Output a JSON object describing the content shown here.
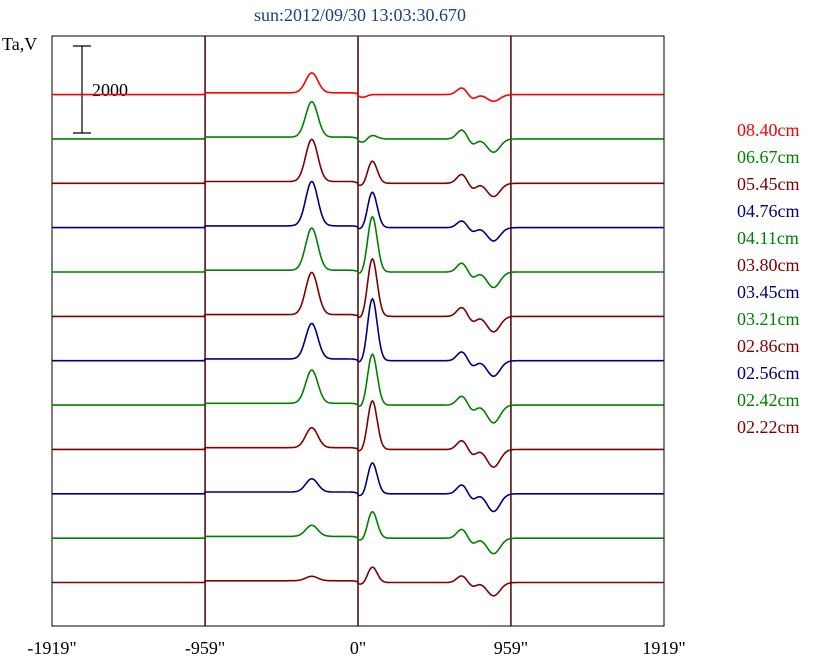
{
  "chart_data": {
    "type": "line",
    "title": "sun:2012/09/30 13:03:30.670",
    "ylabel": "Ta,V",
    "xlabel": "",
    "scale_bar_label": "2000",
    "scale_bar_value": 2000,
    "x_ticks": [
      "-1919\"",
      "-959\"",
      "0\"",
      "959\"",
      "1919\""
    ],
    "x_tick_values": [
      -1919,
      -959,
      0,
      959,
      1919
    ],
    "xlim": [
      -1919,
      1919
    ],
    "vlines": [
      -959,
      0,
      959
    ],
    "ylim": [
      0,
      13.3
    ],
    "series": [
      {
        "name": "08.40cm",
        "color": "#ff0000",
        "offset": 12,
        "peak_left": 0.45,
        "peak_right": 0.0,
        "dip": 0.15,
        "bumps": 0.15
      },
      {
        "name": "06.67cm",
        "color": "#008000",
        "offset": 11,
        "peak_left": 0.8,
        "peak_right": 0.08,
        "dip": 0.3,
        "bumps": 0.2
      },
      {
        "name": "05.45cm",
        "color": "#800000",
        "offset": 10,
        "peak_left": 0.95,
        "peak_right": 0.5,
        "dip": 0.3,
        "bumps": 0.2
      },
      {
        "name": "04.76cm",
        "color": "#000080",
        "offset": 9,
        "peak_left": 1.0,
        "peak_right": 0.8,
        "dip": 0.3,
        "bumps": 0.15
      },
      {
        "name": "04.11cm",
        "color": "#008000",
        "offset": 8,
        "peak_left": 0.95,
        "peak_right": 1.25,
        "dip": 0.35,
        "bumps": 0.2
      },
      {
        "name": "03.80cm",
        "color": "#800000",
        "offset": 7,
        "peak_left": 0.95,
        "peak_right": 1.3,
        "dip": 0.35,
        "bumps": 0.2
      },
      {
        "name": "03.45cm",
        "color": "#000080",
        "offset": 6,
        "peak_left": 0.8,
        "peak_right": 1.4,
        "dip": 0.35,
        "bumps": 0.2
      },
      {
        "name": "03.21cm",
        "color": "#008000",
        "offset": 5,
        "peak_left": 0.75,
        "peak_right": 1.15,
        "dip": 0.4,
        "bumps": 0.2
      },
      {
        "name": "02.86cm",
        "color": "#800000",
        "offset": 4,
        "peak_left": 0.45,
        "peak_right": 1.1,
        "dip": 0.4,
        "bumps": 0.2
      },
      {
        "name": "02.56cm",
        "color": "#000080",
        "offset": 3,
        "peak_left": 0.3,
        "peak_right": 0.7,
        "dip": 0.4,
        "bumps": 0.2
      },
      {
        "name": "02.42cm",
        "color": "#008000",
        "offset": 2,
        "peak_left": 0.25,
        "peak_right": 0.6,
        "dip": 0.35,
        "bumps": 0.2
      },
      {
        "name": "02.22cm",
        "color": "#800000",
        "offset": 1,
        "peak_left": 0.1,
        "peak_right": 0.35,
        "dip": 0.3,
        "bumps": 0.15
      }
    ],
    "grid": false,
    "legend_position": "right"
  }
}
